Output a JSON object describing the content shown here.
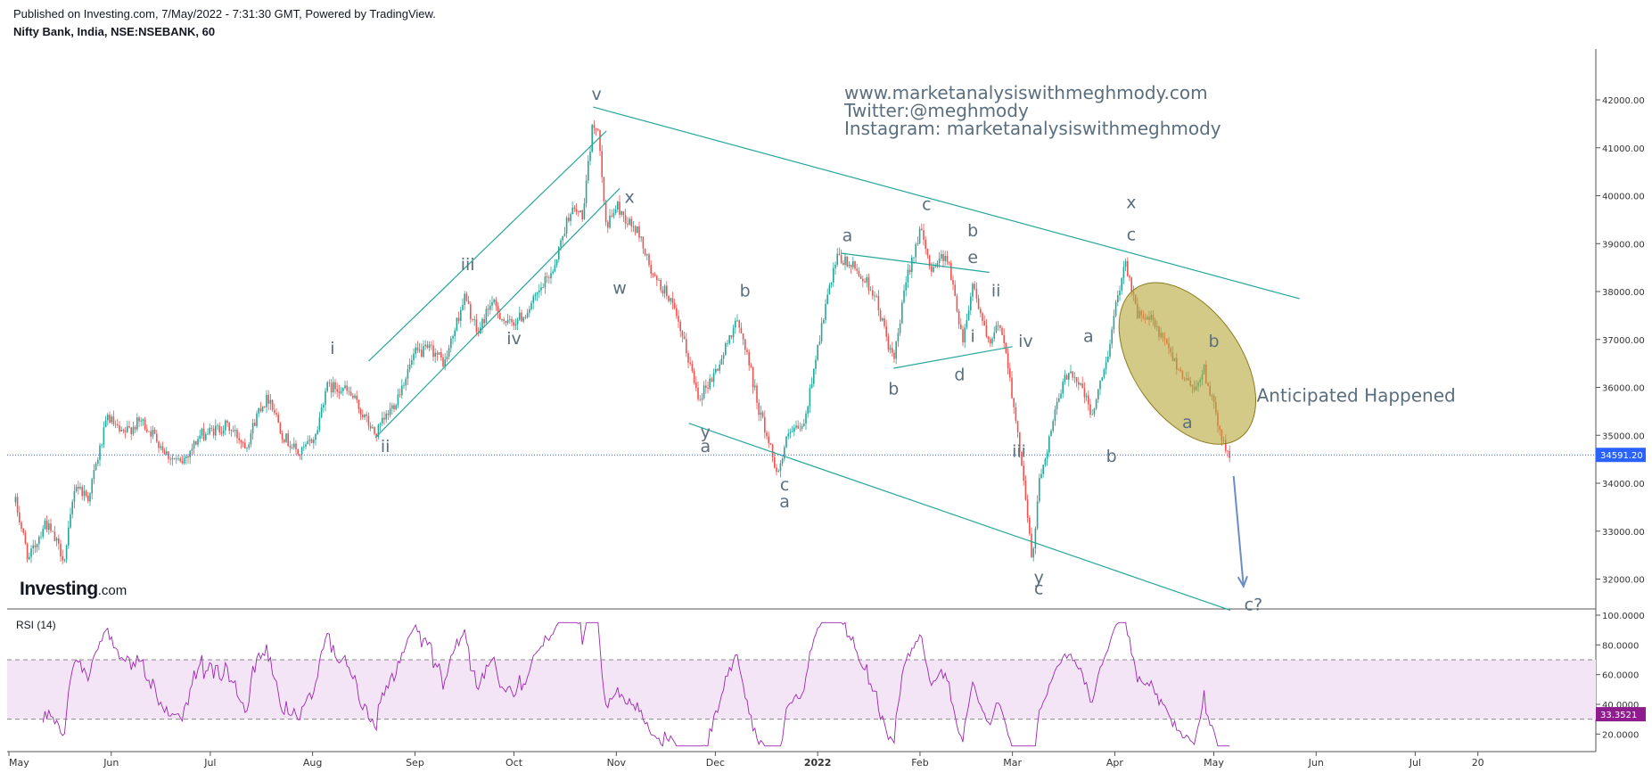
{
  "header": {
    "published": "Published on Investing.com, 7/May/2022 - 7:31:30 GMT, Powered by TradingView.",
    "symbol": "Nifty Bank, India, NSE:NSEBANK, 60"
  },
  "logo": {
    "main": "Investing",
    "suffix": ".com"
  },
  "watermark": [
    "www.marketanalysiswithmeghmody.com",
    "Twitter:@meghmody",
    "Instagram: marketanalysiswithmeghmody"
  ],
  "colors": {
    "up": "#26a69a",
    "down": "#ef5350",
    "trendline": "#26a69a",
    "rsi_line": "#9c27b0",
    "rsi_band": "#f3e5f5",
    "price_line": "#2962ff",
    "price_badge": "#2962ff",
    "rsi_badge": "#8e1c8e",
    "ellipse": "#b5a739",
    "arrow": "#6c8cc4"
  },
  "chart_data": {
    "type": "candlestick",
    "title": "Nifty Bank, India, NSE:NSEBANK, 60",
    "y_ticks": [
      "42000.00",
      "41000.00",
      "40000.00",
      "39000.00",
      "38000.00",
      "37000.00",
      "36000.00",
      "35000.00",
      "34000.00",
      "33000.00",
      "32000.00"
    ],
    "ylim": [
      31500,
      42900
    ],
    "x_ticks": [
      "May",
      "Jun",
      "Jul",
      "Aug",
      "Sep",
      "Oct",
      "Nov",
      "Dec",
      "2022",
      "Feb",
      "Mar",
      "Apr",
      "May",
      "Jun",
      "Jul",
      "20"
    ],
    "current_price": "34591.20",
    "path": [
      [
        "2021-05-03",
        33600
      ],
      [
        "2021-05-07",
        32400
      ],
      [
        "2021-05-12",
        33200
      ],
      [
        "2021-05-18",
        32400
      ],
      [
        "2021-05-21",
        34000
      ],
      [
        "2021-05-25",
        33700
      ],
      [
        "2021-05-31",
        35400
      ],
      [
        "2021-06-04",
        35000
      ],
      [
        "2021-06-10",
        35300
      ],
      [
        "2021-06-14",
        35000
      ],
      [
        "2021-06-18",
        34600
      ],
      [
        "2021-06-22",
        34400
      ],
      [
        "2021-06-28",
        35000
      ],
      [
        "2021-07-06",
        35200
      ],
      [
        "2021-07-12",
        34800
      ],
      [
        "2021-07-16",
        35600
      ],
      [
        "2021-07-19",
        35800
      ],
      [
        "2021-07-23",
        35000
      ],
      [
        "2021-07-28",
        34600
      ],
      [
        "2021-08-02",
        35000
      ],
      [
        "2021-08-05",
        36000
      ],
      [
        "2021-08-10",
        36000
      ],
      [
        "2021-08-13",
        35800
      ],
      [
        "2021-08-20",
        35000
      ],
      [
        "2021-08-26",
        35700
      ],
      [
        "2021-09-01",
        36700
      ],
      [
        "2021-09-06",
        36800
      ],
      [
        "2021-09-10",
        36500
      ],
      [
        "2021-09-16",
        37900
      ],
      [
        "2021-09-20",
        37100
      ],
      [
        "2021-09-24",
        37800
      ],
      [
        "2021-09-29",
        37300
      ],
      [
        "2021-10-04",
        37500
      ],
      [
        "2021-10-08",
        37900
      ],
      [
        "2021-10-13",
        38500
      ],
      [
        "2021-10-18",
        39700
      ],
      [
        "2021-10-22",
        39600
      ],
      [
        "2021-10-25",
        41600
      ],
      [
        "2021-10-27",
        41100
      ],
      [
        "2021-10-29",
        39300
      ],
      [
        "2021-11-01",
        39800
      ],
      [
        "2021-11-04",
        39500
      ],
      [
        "2021-11-08",
        39200
      ],
      [
        "2021-11-12",
        38300
      ],
      [
        "2021-11-17",
        37900
      ],
      [
        "2021-11-22",
        36800
      ],
      [
        "2021-11-26",
        35800
      ],
      [
        "2021-11-30",
        36200
      ],
      [
        "2021-12-03",
        36600
      ],
      [
        "2021-12-07",
        37400
      ],
      [
        "2021-12-10",
        36900
      ],
      [
        "2021-12-14",
        35600
      ],
      [
        "2021-12-20",
        34200
      ],
      [
        "2021-12-23",
        35000
      ],
      [
        "2021-12-28",
        35200
      ],
      [
        "2021-12-31",
        36500
      ],
      [
        "2022-01-04",
        37900
      ],
      [
        "2022-01-07",
        38700
      ],
      [
        "2022-01-12",
        38500
      ],
      [
        "2022-01-18",
        38000
      ],
      [
        "2022-01-24",
        36500
      ],
      [
        "2022-01-28",
        38300
      ],
      [
        "2022-02-01",
        39300
      ],
      [
        "2022-02-04",
        38500
      ],
      [
        "2022-02-09",
        38800
      ],
      [
        "2022-02-14",
        37000
      ],
      [
        "2022-02-17",
        38200
      ],
      [
        "2022-02-22",
        36800
      ],
      [
        "2022-02-25",
        37400
      ],
      [
        "2022-02-28",
        36400
      ],
      [
        "2022-03-02",
        35200
      ],
      [
        "2022-03-04",
        34400
      ],
      [
        "2022-03-07",
        32300
      ],
      [
        "2022-03-09",
        34000
      ],
      [
        "2022-03-14",
        35500
      ],
      [
        "2022-03-18",
        36400
      ],
      [
        "2022-03-22",
        36000
      ],
      [
        "2022-03-25",
        35400
      ],
      [
        "2022-03-29",
        36400
      ],
      [
        "2022-04-04",
        38700
      ],
      [
        "2022-04-08",
        37500
      ],
      [
        "2022-04-12",
        37400
      ],
      [
        "2022-04-18",
        36700
      ],
      [
        "2022-04-22",
        36200
      ],
      [
        "2022-04-26",
        36000
      ],
      [
        "2022-04-28",
        36400
      ],
      [
        "2022-05-02",
        35300
      ],
      [
        "2022-05-05",
        34600
      ],
      [
        "2022-05-06",
        34591
      ]
    ],
    "trendlines": [
      {
        "from": [
          "2021-10-25",
          41850
        ],
        "to": [
          "2022-05-27",
          37850
        ]
      },
      {
        "from": [
          "2021-11-23",
          35250
        ],
        "to": [
          "2022-05-06",
          31350
        ]
      },
      {
        "from": [
          "2021-08-18",
          36550
        ],
        "to": [
          "2021-10-29",
          41350
        ]
      },
      {
        "from": [
          "2021-08-20",
          34950
        ],
        "to": [
          "2021-11-02",
          40150
        ]
      },
      {
        "from": [
          "2022-01-08",
          38800
        ],
        "to": [
          "2022-02-22",
          38400
        ]
      },
      {
        "from": [
          "2022-01-24",
          36400
        ],
        "to": [
          "2022-03-01",
          36850
        ]
      }
    ],
    "ellipse": {
      "center": [
        "2022-04-23",
        36500
      ],
      "span_days": 12,
      "span_price": 3400,
      "angle_deg": 55
    },
    "arrow": {
      "from": [
        "2022-05-07",
        34150
      ],
      "to": [
        "2022-05-10",
        31850
      ]
    },
    "wave_labels": [
      {
        "t": "i",
        "at": [
          "2021-08-07",
          36700
        ]
      },
      {
        "t": "ii",
        "at": [
          "2021-08-23",
          34650
        ]
      },
      {
        "t": "iii",
        "at": [
          "2021-09-17",
          38450
        ]
      },
      {
        "t": "iv",
        "at": [
          "2021-10-01",
          36900
        ]
      },
      {
        "t": "v",
        "at": [
          "2021-10-26",
          42000
        ]
      },
      {
        "t": "x",
        "at": [
          "2021-11-05",
          39850
        ]
      },
      {
        "t": "w",
        "at": [
          "2021-11-02",
          37950
        ]
      },
      {
        "t": "y",
        "at": [
          "2021-11-28",
          34950
        ]
      },
      {
        "t": "a",
        "at": [
          "2021-11-28",
          34650
        ]
      },
      {
        "t": "b",
        "at": [
          "2021-12-10",
          37900
        ]
      },
      {
        "t": "c",
        "at": [
          "2021-12-22",
          33850
        ]
      },
      {
        "t": "a",
        "at": [
          "2021-12-22",
          33500
        ]
      },
      {
        "t": "a",
        "at": [
          "2022-01-10",
          39050
        ]
      },
      {
        "t": "b",
        "at": [
          "2022-01-24",
          35850
        ]
      },
      {
        "t": "c",
        "at": [
          "2022-02-03",
          39700
        ]
      },
      {
        "t": "b",
        "at": [
          "2022-02-17",
          39150
        ]
      },
      {
        "t": "e",
        "at": [
          "2022-02-17",
          38600
        ]
      },
      {
        "t": "ii",
        "at": [
          "2022-02-24",
          37900
        ]
      },
      {
        "t": "i",
        "at": [
          "2022-02-17",
          36950
        ]
      },
      {
        "t": "d",
        "at": [
          "2022-02-13",
          36150
        ]
      },
      {
        "t": "iv",
        "at": [
          "2022-03-05",
          36850
        ]
      },
      {
        "t": "iii",
        "at": [
          "2022-03-03",
          34550
        ]
      },
      {
        "t": "y",
        "at": [
          "2022-03-09",
          31920
        ]
      },
      {
        "t": "c",
        "at": [
          "2022-03-09",
          31680
        ]
      },
      {
        "t": "a",
        "at": [
          "2022-03-24",
          36950
        ]
      },
      {
        "t": "b",
        "at": [
          "2022-03-31",
          34450
        ]
      },
      {
        "t": "x",
        "at": [
          "2022-04-06",
          39740
        ]
      },
      {
        "t": "c",
        "at": [
          "2022-04-06",
          39070
        ]
      },
      {
        "t": "a",
        "at": [
          "2022-04-23",
          35150
        ]
      },
      {
        "t": "b",
        "at": [
          "2022-05-01",
          36850
        ]
      },
      {
        "t": "c?",
        "at": [
          "2022-05-13",
          31350
        ]
      }
    ],
    "annotation": {
      "text": "Anticipated Happened",
      "at": [
        "2022-05-14",
        35700
      ]
    },
    "rsi": {
      "label": "RSI (14)",
      "current": "33.3521",
      "y_ticks": [
        "100.0000",
        "80.0000",
        "60.0000",
        "40.0000",
        "20.0000"
      ],
      "ylim": [
        10,
        100
      ],
      "bands": [
        30,
        70
      ]
    }
  }
}
